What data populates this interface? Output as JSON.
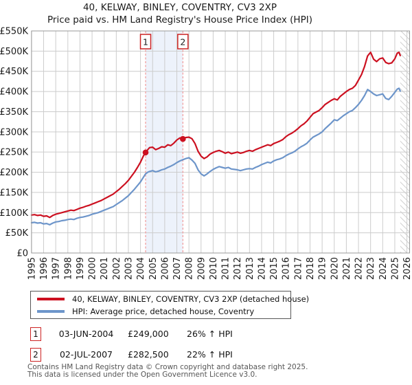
{
  "title": {
    "line1": "40, KELWAY, BINLEY, COVENTRY, CV3 2XP",
    "line2": "Price paid vs. HM Land Registry's House Price Index (HPI)"
  },
  "chart_data": {
    "type": "line",
    "units": "GBP_thousands",
    "ylim_k": [
      0,
      550
    ],
    "xlim_years": [
      1995,
      2026.2
    ],
    "grid": true,
    "y_ticks": [
      {
        "label": "£550K",
        "k": 550
      },
      {
        "label": "£500K",
        "k": 500
      },
      {
        "label": "£450K",
        "k": 450
      },
      {
        "label": "£400K",
        "k": 400
      },
      {
        "label": "£350K",
        "k": 350
      },
      {
        "label": "£300K",
        "k": 300
      },
      {
        "label": "£250K",
        "k": 250
      },
      {
        "label": "£200K",
        "k": 200
      },
      {
        "label": "£150K",
        "k": 150
      },
      {
        "label": "£100K",
        "k": 100
      },
      {
        "label": "£50K",
        "k": 50
      },
      {
        "label": "£0",
        "k": 0
      }
    ],
    "x_ticks": [
      "1995",
      "1996",
      "1997",
      "1998",
      "1999",
      "2000",
      "2001",
      "2002",
      "2003",
      "2004",
      "2005",
      "2006",
      "2007",
      "2008",
      "2009",
      "2010",
      "2011",
      "2012",
      "2013",
      "2014",
      "2015",
      "2016",
      "2017",
      "2018",
      "2019",
      "2020",
      "2021",
      "2022",
      "2023",
      "2024",
      "2025",
      "2026"
    ],
    "shaded_region_years": [
      2004.42,
      2007.5
    ],
    "hatch_from_year": 2025.45,
    "colors": {
      "property": "#cc1020",
      "hpi": "#6d95ca",
      "band": "#edf2fb",
      "grid": "#cccccc",
      "border": "#999999",
      "hatch": "#cfcfcf",
      "sale_dash": "#f19999",
      "marker_box": "#cc2222"
    },
    "sales": [
      {
        "n": "1",
        "year": 2004.42,
        "price_k": 249
      },
      {
        "n": "2",
        "year": 2007.5,
        "price_k": 282.5
      }
    ],
    "series": [
      {
        "name": "40, KELWAY, BINLEY, COVENTRY, CV3 2XP (detached house)",
        "color": "#cc1020",
        "points_k": [
          [
            1995,
            94
          ],
          [
            1995.25,
            95
          ],
          [
            1995.5,
            93
          ],
          [
            1995.75,
            94
          ],
          [
            1996,
            91
          ],
          [
            1996.25,
            92
          ],
          [
            1996.5,
            88
          ],
          [
            1996.75,
            93
          ],
          [
            1997,
            96
          ],
          [
            1997.25,
            98
          ],
          [
            1997.5,
            100
          ],
          [
            1997.75,
            102
          ],
          [
            1998,
            104
          ],
          [
            1998.25,
            106
          ],
          [
            1998.5,
            105
          ],
          [
            1998.75,
            108
          ],
          [
            1999,
            111
          ],
          [
            1999.25,
            113
          ],
          [
            1999.5,
            116
          ],
          [
            1999.75,
            118
          ],
          [
            2000,
            121
          ],
          [
            2000.25,
            124
          ],
          [
            2000.5,
            127
          ],
          [
            2000.75,
            130
          ],
          [
            2001,
            134
          ],
          [
            2001.25,
            138
          ],
          [
            2001.5,
            142
          ],
          [
            2001.75,
            146
          ],
          [
            2002,
            152
          ],
          [
            2002.25,
            158
          ],
          [
            2002.5,
            165
          ],
          [
            2002.75,
            172
          ],
          [
            2003,
            180
          ],
          [
            2003.25,
            190
          ],
          [
            2003.5,
            200
          ],
          [
            2003.75,
            212
          ],
          [
            2004,
            225
          ],
          [
            2004.25,
            241
          ],
          [
            2004.42,
            249
          ],
          [
            2004.6,
            256
          ],
          [
            2004.75,
            261
          ],
          [
            2005,
            262
          ],
          [
            2005.25,
            256
          ],
          [
            2005.5,
            259
          ],
          [
            2005.75,
            263
          ],
          [
            2006,
            262
          ],
          [
            2006.25,
            268
          ],
          [
            2006.5,
            266
          ],
          [
            2006.75,
            272
          ],
          [
            2007,
            280
          ],
          [
            2007.25,
            285
          ],
          [
            2007.5,
            283
          ],
          [
            2007.75,
            286
          ],
          [
            2008,
            287
          ],
          [
            2008.25,
            283
          ],
          [
            2008.5,
            271
          ],
          [
            2008.75,
            252
          ],
          [
            2009,
            240
          ],
          [
            2009.25,
            234
          ],
          [
            2009.5,
            238
          ],
          [
            2009.75,
            245
          ],
          [
            2010,
            249
          ],
          [
            2010.25,
            252
          ],
          [
            2010.5,
            254
          ],
          [
            2010.75,
            251
          ],
          [
            2011,
            247
          ],
          [
            2011.25,
            250
          ],
          [
            2011.5,
            246
          ],
          [
            2011.75,
            248
          ],
          [
            2012,
            250
          ],
          [
            2012.25,
            247
          ],
          [
            2012.5,
            249
          ],
          [
            2012.75,
            252
          ],
          [
            2013,
            254
          ],
          [
            2013.25,
            252
          ],
          [
            2013.5,
            256
          ],
          [
            2013.75,
            259
          ],
          [
            2014,
            262
          ],
          [
            2014.25,
            265
          ],
          [
            2014.5,
            268
          ],
          [
            2014.75,
            266
          ],
          [
            2015,
            271
          ],
          [
            2015.25,
            274
          ],
          [
            2015.5,
            277
          ],
          [
            2015.75,
            281
          ],
          [
            2016,
            288
          ],
          [
            2016.25,
            293
          ],
          [
            2016.5,
            297
          ],
          [
            2016.75,
            302
          ],
          [
            2017,
            308
          ],
          [
            2017.25,
            315
          ],
          [
            2017.5,
            320
          ],
          [
            2017.75,
            327
          ],
          [
            2018,
            336
          ],
          [
            2018.25,
            345
          ],
          [
            2018.5,
            349
          ],
          [
            2018.75,
            353
          ],
          [
            2019,
            360
          ],
          [
            2019.25,
            368
          ],
          [
            2019.5,
            373
          ],
          [
            2019.75,
            378
          ],
          [
            2020,
            382
          ],
          [
            2020.25,
            379
          ],
          [
            2020.5,
            388
          ],
          [
            2020.75,
            394
          ],
          [
            2021,
            400
          ],
          [
            2021.25,
            405
          ],
          [
            2021.5,
            408
          ],
          [
            2021.75,
            415
          ],
          [
            2022,
            428
          ],
          [
            2022.25,
            442
          ],
          [
            2022.5,
            462
          ],
          [
            2022.75,
            488
          ],
          [
            2023,
            497
          ],
          [
            2023.25,
            480
          ],
          [
            2023.5,
            474
          ],
          [
            2023.75,
            481
          ],
          [
            2024,
            483
          ],
          [
            2024.25,
            472
          ],
          [
            2024.5,
            469
          ],
          [
            2024.75,
            471
          ],
          [
            2025,
            481
          ],
          [
            2025.2,
            495
          ],
          [
            2025.35,
            497
          ],
          [
            2025.45,
            489
          ]
        ]
      },
      {
        "name": "HPI: Average price, detached house, Coventry",
        "color": "#6d95ca",
        "points_k": [
          [
            1995,
            75
          ],
          [
            1995.25,
            76
          ],
          [
            1995.5,
            74
          ],
          [
            1995.75,
            75
          ],
          [
            1996,
            72
          ],
          [
            1996.25,
            73
          ],
          [
            1996.5,
            70
          ],
          [
            1996.75,
            74
          ],
          [
            1997,
            77
          ],
          [
            1997.25,
            78
          ],
          [
            1997.5,
            80
          ],
          [
            1997.75,
            81
          ],
          [
            1998,
            83
          ],
          [
            1998.25,
            84
          ],
          [
            1998.5,
            83
          ],
          [
            1998.75,
            86
          ],
          [
            1999,
            88
          ],
          [
            1999.25,
            89
          ],
          [
            1999.5,
            91
          ],
          [
            1999.75,
            93
          ],
          [
            2000,
            96
          ],
          [
            2000.25,
            98
          ],
          [
            2000.5,
            100
          ],
          [
            2000.75,
            103
          ],
          [
            2001,
            106
          ],
          [
            2001.25,
            109
          ],
          [
            2001.5,
            112
          ],
          [
            2001.75,
            115
          ],
          [
            2002,
            120
          ],
          [
            2002.25,
            125
          ],
          [
            2002.5,
            130
          ],
          [
            2002.75,
            136
          ],
          [
            2003,
            142
          ],
          [
            2003.25,
            150
          ],
          [
            2003.5,
            158
          ],
          [
            2003.75,
            167
          ],
          [
            2004,
            176
          ],
          [
            2004.25,
            188
          ],
          [
            2004.42,
            196
          ],
          [
            2004.6,
            200
          ],
          [
            2004.75,
            202
          ],
          [
            2005,
            204
          ],
          [
            2005.25,
            201
          ],
          [
            2005.5,
            203
          ],
          [
            2005.75,
            206
          ],
          [
            2006,
            208
          ],
          [
            2006.25,
            212
          ],
          [
            2006.5,
            215
          ],
          [
            2006.75,
            219
          ],
          [
            2007,
            224
          ],
          [
            2007.25,
            228
          ],
          [
            2007.5,
            231
          ],
          [
            2007.75,
            234
          ],
          [
            2008,
            236
          ],
          [
            2008.25,
            230
          ],
          [
            2008.5,
            222
          ],
          [
            2008.75,
            206
          ],
          [
            2009,
            196
          ],
          [
            2009.25,
            191
          ],
          [
            2009.5,
            196
          ],
          [
            2009.75,
            202
          ],
          [
            2010,
            207
          ],
          [
            2010.25,
            211
          ],
          [
            2010.5,
            214
          ],
          [
            2010.75,
            212
          ],
          [
            2011,
            210
          ],
          [
            2011.25,
            212
          ],
          [
            2011.5,
            208
          ],
          [
            2011.75,
            207
          ],
          [
            2012,
            206
          ],
          [
            2012.25,
            204
          ],
          [
            2012.5,
            206
          ],
          [
            2012.75,
            208
          ],
          [
            2013,
            209
          ],
          [
            2013.25,
            208
          ],
          [
            2013.5,
            212
          ],
          [
            2013.75,
            215
          ],
          [
            2014,
            219
          ],
          [
            2014.25,
            222
          ],
          [
            2014.5,
            225
          ],
          [
            2014.75,
            223
          ],
          [
            2015,
            228
          ],
          [
            2015.25,
            231
          ],
          [
            2015.5,
            233
          ],
          [
            2015.75,
            236
          ],
          [
            2016,
            241
          ],
          [
            2016.25,
            245
          ],
          [
            2016.5,
            248
          ],
          [
            2016.75,
            252
          ],
          [
            2017,
            258
          ],
          [
            2017.25,
            263
          ],
          [
            2017.5,
            267
          ],
          [
            2017.75,
            272
          ],
          [
            2018,
            280
          ],
          [
            2018.25,
            287
          ],
          [
            2018.5,
            291
          ],
          [
            2018.75,
            295
          ],
          [
            2019,
            300
          ],
          [
            2019.25,
            308
          ],
          [
            2019.5,
            315
          ],
          [
            2019.75,
            322
          ],
          [
            2020,
            330
          ],
          [
            2020.25,
            328
          ],
          [
            2020.5,
            334
          ],
          [
            2020.75,
            340
          ],
          [
            2021,
            345
          ],
          [
            2021.25,
            350
          ],
          [
            2021.5,
            353
          ],
          [
            2021.75,
            360
          ],
          [
            2022,
            368
          ],
          [
            2022.25,
            378
          ],
          [
            2022.5,
            390
          ],
          [
            2022.75,
            405
          ],
          [
            2023,
            400
          ],
          [
            2023.25,
            394
          ],
          [
            2023.5,
            390
          ],
          [
            2023.75,
            392
          ],
          [
            2024,
            394
          ],
          [
            2024.25,
            383
          ],
          [
            2024.5,
            380
          ],
          [
            2024.75,
            388
          ],
          [
            2025,
            398
          ],
          [
            2025.2,
            406
          ],
          [
            2025.35,
            408
          ],
          [
            2025.45,
            401
          ]
        ]
      }
    ]
  },
  "legend": {
    "items": [
      {
        "label": "40, KELWAY, BINLEY, COVENTRY, CV3 2XP (detached house)",
        "color": "#cc1020"
      },
      {
        "label": "HPI: Average price, detached house, Coventry",
        "color": "#6d95ca"
      }
    ]
  },
  "transactions": [
    {
      "num": "1",
      "date": "03-JUN-2004",
      "price": "£249,000",
      "hpi": "26% ↑ HPI"
    },
    {
      "num": "2",
      "date": "02-JUL-2007",
      "price": "£282,500",
      "hpi": "22% ↑ HPI"
    }
  ],
  "footer": {
    "line1": "Contains HM Land Registry data © Crown copyright and database right 2025.",
    "line2": "This data is licensed under the Open Government Licence v3.0."
  }
}
